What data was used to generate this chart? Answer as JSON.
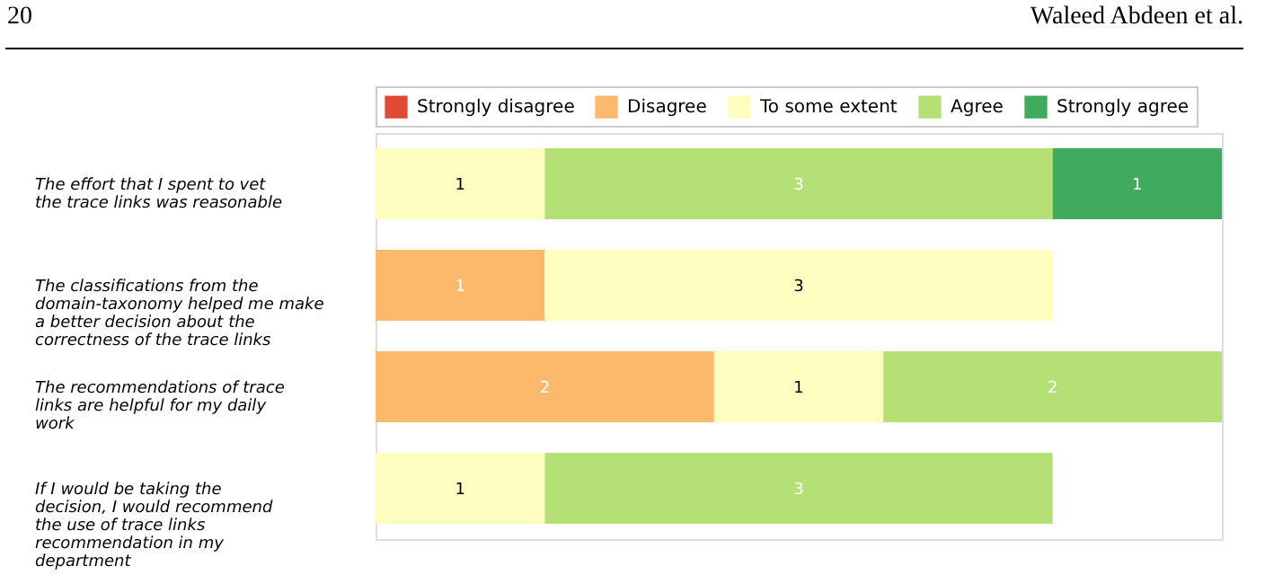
{
  "chart_data": {
    "type": "bar",
    "orientation": "horizontal",
    "stacked": true,
    "tick_labels": "y",
    "grid": false,
    "legend": "top",
    "xlim": [
      0,
      5
    ],
    "annotations": [
      "20",
      "Waleed Abdeen et al."
    ],
    "categories": [
      "The effort that I spent to vet the trace links was reasonable",
      "The classifications from the domain-taxonomy helped me make a better decision about the correctness of the trace links",
      "The recommendations of trace links are helpful for my daily work",
      "If I would be taking the decision, I would recommend the use of trace links recommendation in my department"
    ],
    "series": [
      {
        "name": "Strongly disagree",
        "color": "#e34a33",
        "values": [
          0,
          0,
          0,
          0
        ],
        "value_labels": [
          null,
          null,
          null,
          null
        ]
      },
      {
        "name": "Disagree",
        "color": "#fdb96b",
        "values": [
          0,
          1,
          2,
          0
        ],
        "value_labels": [
          null,
          "1",
          "2",
          null
        ]
      },
      {
        "name": "To some extent",
        "color": "#fefec0",
        "values": [
          1,
          3,
          1,
          1
        ],
        "value_labels": [
          "1",
          "3",
          "1",
          "1"
        ]
      },
      {
        "name": "Agree",
        "color": "#b5e075",
        "values": [
          3,
          0,
          2,
          3
        ],
        "value_labels": [
          "3",
          null,
          "2",
          "3"
        ]
      },
      {
        "name": "Strongly agree",
        "color": "#41ab5d",
        "values": [
          1,
          0,
          0,
          0
        ],
        "value_labels": [
          "1",
          null,
          null,
          null
        ]
      }
    ]
  }
}
